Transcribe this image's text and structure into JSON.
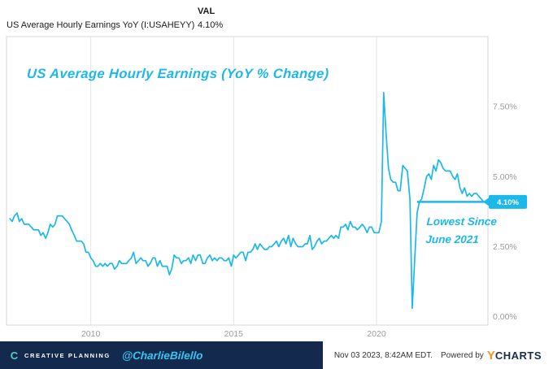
{
  "header": {
    "series_label": "US Average Hourly Earnings YoY (I:USAHEYY)",
    "val_header": "VAL",
    "val_value": "4.10%"
  },
  "chart_data": {
    "type": "line",
    "title": "US Average Hourly Earnings (YoY % Change)",
    "series_name": "US Average Hourly Earnings YoY (I:USAHEYY)",
    "line_color": "#1cb8ea",
    "grid": "vertical-only",
    "legend": "none",
    "xlim": [
      2007.05,
      2023.9
    ],
    "ylim": [
      -0.3,
      10.0
    ],
    "x_ticks": [
      {
        "value": 2010,
        "label": "2010"
      },
      {
        "value": 2015,
        "label": "2015"
      },
      {
        "value": 2020,
        "label": "2020"
      }
    ],
    "y_ticks": [
      {
        "value": 0,
        "label": "0.00%"
      },
      {
        "value": 2.5,
        "label": "2.50%"
      },
      {
        "value": 5,
        "label": "5.00%"
      },
      {
        "value": 7.5,
        "label": "7.50%"
      }
    ],
    "annotation": {
      "line": {
        "x_start": 2021.42,
        "x_end": 2023.9,
        "y": 4.1
      },
      "badge_label": "4.10%",
      "note": [
        "Lowest Since",
        "June 2021"
      ],
      "color": "#1cb8ea"
    },
    "points": [
      [
        2007.17,
        3.5
      ],
      [
        2007.25,
        3.4
      ],
      [
        2007.33,
        3.6
      ],
      [
        2007.42,
        3.7
      ],
      [
        2007.5,
        3.4
      ],
      [
        2007.58,
        3.5
      ],
      [
        2007.67,
        3.3
      ],
      [
        2007.75,
        3.3
      ],
      [
        2007.83,
        3.3
      ],
      [
        2007.92,
        3.2
      ],
      [
        2008.0,
        3.1
      ],
      [
        2008.08,
        3.1
      ],
      [
        2008.17,
        3.1
      ],
      [
        2008.25,
        2.9
      ],
      [
        2008.33,
        3.0
      ],
      [
        2008.42,
        2.8
      ],
      [
        2008.5,
        3.0
      ],
      [
        2008.58,
        3.3
      ],
      [
        2008.67,
        3.2
      ],
      [
        2008.75,
        3.3
      ],
      [
        2008.83,
        3.6
      ],
      [
        2008.92,
        3.6
      ],
      [
        2009.0,
        3.6
      ],
      [
        2009.08,
        3.5
      ],
      [
        2009.17,
        3.4
      ],
      [
        2009.25,
        3.3
      ],
      [
        2009.33,
        3.1
      ],
      [
        2009.42,
        2.9
      ],
      [
        2009.5,
        2.7
      ],
      [
        2009.58,
        2.7
      ],
      [
        2009.67,
        2.7
      ],
      [
        2009.75,
        2.6
      ],
      [
        2009.83,
        2.3
      ],
      [
        2009.92,
        2.3
      ],
      [
        2010.0,
        2.1
      ],
      [
        2010.08,
        2.0
      ],
      [
        2010.17,
        1.8
      ],
      [
        2010.25,
        1.8
      ],
      [
        2010.33,
        1.9
      ],
      [
        2010.42,
        1.8
      ],
      [
        2010.5,
        1.9
      ],
      [
        2010.58,
        1.8
      ],
      [
        2010.67,
        1.9
      ],
      [
        2010.75,
        1.9
      ],
      [
        2010.83,
        1.7
      ],
      [
        2010.92,
        1.8
      ],
      [
        2011.0,
        2.0
      ],
      [
        2011.08,
        1.9
      ],
      [
        2011.17,
        1.9
      ],
      [
        2011.25,
        1.9
      ],
      [
        2011.33,
        2.0
      ],
      [
        2011.42,
        2.1
      ],
      [
        2011.5,
        2.3
      ],
      [
        2011.58,
        1.9
      ],
      [
        2011.67,
        2.0
      ],
      [
        2011.75,
        2.1
      ],
      [
        2011.83,
        2.0
      ],
      [
        2011.92,
        2.0
      ],
      [
        2012.0,
        1.8
      ],
      [
        2012.08,
        1.9
      ],
      [
        2012.17,
        2.1
      ],
      [
        2012.25,
        2.1
      ],
      [
        2012.33,
        1.8
      ],
      [
        2012.42,
        2.0
      ],
      [
        2012.5,
        1.8
      ],
      [
        2012.58,
        1.8
      ],
      [
        2012.67,
        1.8
      ],
      [
        2012.75,
        1.5
      ],
      [
        2012.83,
        1.7
      ],
      [
        2012.92,
        2.2
      ],
      [
        2013.0,
        2.1
      ],
      [
        2013.08,
        2.1
      ],
      [
        2013.17,
        1.9
      ],
      [
        2013.25,
        2.0
      ],
      [
        2013.33,
        2.0
      ],
      [
        2013.42,
        2.1
      ],
      [
        2013.5,
        1.9
      ],
      [
        2013.58,
        2.2
      ],
      [
        2013.67,
        2.0
      ],
      [
        2013.75,
        2.2
      ],
      [
        2013.83,
        2.2
      ],
      [
        2013.92,
        1.9
      ],
      [
        2014.0,
        1.9
      ],
      [
        2014.08,
        2.1
      ],
      [
        2014.17,
        2.2
      ],
      [
        2014.25,
        2.0
      ],
      [
        2014.33,
        2.1
      ],
      [
        2014.42,
        2.0
      ],
      [
        2014.5,
        2.1
      ],
      [
        2014.58,
        2.1
      ],
      [
        2014.67,
        2.0
      ],
      [
        2014.75,
        2.0
      ],
      [
        2014.83,
        2.1
      ],
      [
        2014.92,
        1.8
      ],
      [
        2015.0,
        2.2
      ],
      [
        2015.08,
        2.1
      ],
      [
        2015.17,
        2.2
      ],
      [
        2015.25,
        2.3
      ],
      [
        2015.33,
        2.3
      ],
      [
        2015.42,
        2.0
      ],
      [
        2015.5,
        2.3
      ],
      [
        2015.58,
        2.3
      ],
      [
        2015.67,
        2.4
      ],
      [
        2015.75,
        2.6
      ],
      [
        2015.83,
        2.4
      ],
      [
        2015.92,
        2.6
      ],
      [
        2016.0,
        2.5
      ],
      [
        2016.08,
        2.4
      ],
      [
        2016.17,
        2.4
      ],
      [
        2016.25,
        2.5
      ],
      [
        2016.33,
        2.5
      ],
      [
        2016.42,
        2.6
      ],
      [
        2016.5,
        2.7
      ],
      [
        2016.58,
        2.5
      ],
      [
        2016.67,
        2.7
      ],
      [
        2016.75,
        2.8
      ],
      [
        2016.83,
        2.6
      ],
      [
        2016.92,
        2.9
      ],
      [
        2017.0,
        2.5
      ],
      [
        2017.08,
        2.8
      ],
      [
        2017.17,
        2.6
      ],
      [
        2017.25,
        2.5
      ],
      [
        2017.33,
        2.5
      ],
      [
        2017.42,
        2.5
      ],
      [
        2017.5,
        2.6
      ],
      [
        2017.58,
        2.6
      ],
      [
        2017.67,
        2.9
      ],
      [
        2017.75,
        2.4
      ],
      [
        2017.83,
        2.5
      ],
      [
        2017.92,
        2.7
      ],
      [
        2018.0,
        2.8
      ],
      [
        2018.08,
        2.6
      ],
      [
        2018.17,
        2.7
      ],
      [
        2018.25,
        2.7
      ],
      [
        2018.33,
        2.8
      ],
      [
        2018.42,
        2.9
      ],
      [
        2018.5,
        2.8
      ],
      [
        2018.58,
        2.9
      ],
      [
        2018.67,
        2.8
      ],
      [
        2018.75,
        3.2
      ],
      [
        2018.83,
        3.2
      ],
      [
        2018.92,
        3.3
      ],
      [
        2019.0,
        3.1
      ],
      [
        2019.08,
        3.4
      ],
      [
        2019.17,
        3.2
      ],
      [
        2019.25,
        3.2
      ],
      [
        2019.33,
        3.1
      ],
      [
        2019.42,
        3.2
      ],
      [
        2019.5,
        3.3
      ],
      [
        2019.58,
        3.2
      ],
      [
        2019.67,
        3.0
      ],
      [
        2019.75,
        3.2
      ],
      [
        2019.83,
        3.2
      ],
      [
        2019.92,
        3.0
      ],
      [
        2020.0,
        3.0
      ],
      [
        2020.08,
        3.0
      ],
      [
        2020.17,
        3.4
      ],
      [
        2020.25,
        8.0
      ],
      [
        2020.33,
        6.6
      ],
      [
        2020.42,
        5.3
      ],
      [
        2020.5,
        4.9
      ],
      [
        2020.58,
        4.8
      ],
      [
        2020.67,
        4.8
      ],
      [
        2020.75,
        4.5
      ],
      [
        2020.83,
        4.5
      ],
      [
        2020.92,
        5.4
      ],
      [
        2021.0,
        5.3
      ],
      [
        2021.08,
        5.2
      ],
      [
        2021.17,
        4.2
      ],
      [
        2021.25,
        0.3
      ],
      [
        2021.33,
        1.9
      ],
      [
        2021.42,
        3.7
      ],
      [
        2021.5,
        4.1
      ],
      [
        2021.58,
        4.2
      ],
      [
        2021.67,
        4.6
      ],
      [
        2021.75,
        5.0
      ],
      [
        2021.83,
        5.1
      ],
      [
        2021.92,
        4.9
      ],
      [
        2022.0,
        5.4
      ],
      [
        2022.08,
        5.2
      ],
      [
        2022.17,
        5.6
      ],
      [
        2022.25,
        5.5
      ],
      [
        2022.33,
        5.3
      ],
      [
        2022.42,
        5.2
      ],
      [
        2022.5,
        5.2
      ],
      [
        2022.58,
        5.2
      ],
      [
        2022.67,
        5.0
      ],
      [
        2022.75,
        4.9
      ],
      [
        2022.83,
        5.1
      ],
      [
        2022.92,
        4.6
      ],
      [
        2023.0,
        4.4
      ],
      [
        2023.08,
        4.6
      ],
      [
        2023.17,
        4.3
      ],
      [
        2023.25,
        4.4
      ],
      [
        2023.33,
        4.3
      ],
      [
        2023.42,
        4.4
      ],
      [
        2023.5,
        4.4
      ],
      [
        2023.58,
        4.3
      ],
      [
        2023.67,
        4.2
      ],
      [
        2023.75,
        4.1
      ]
    ]
  },
  "footer": {
    "brand": "CREATIVE PLANNING",
    "brand_initial": "C",
    "handle": "@CharlieBilello",
    "timestamp": "Nov 03 2023, 8:42AM EDT.",
    "powered_by": "Powered by",
    "ycharts_y": "Y",
    "ycharts_rest": "CHARTS"
  },
  "colors": {
    "accent_cyan": "#1cb8ea",
    "footer_navy": "#14294e",
    "ycharts_orange": "#f7941d",
    "grid_gray": "#e4e4e4"
  }
}
